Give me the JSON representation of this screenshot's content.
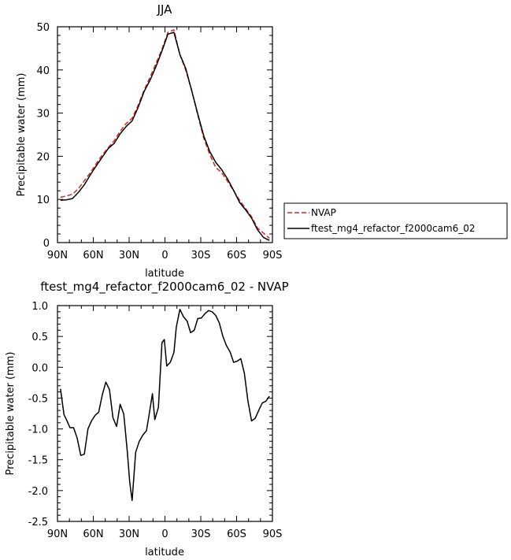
{
  "chart_data": [
    {
      "type": "line",
      "title": "JJA",
      "xlabel": "latitude",
      "ylabel": "Precipitable water (mm)",
      "xlim": [
        90,
        -90
      ],
      "ylim": [
        0,
        50
      ],
      "x_ticks": [
        {
          "value": 90,
          "label": "90N"
        },
        {
          "value": 60,
          "label": "60N"
        },
        {
          "value": 30,
          "label": "30N"
        },
        {
          "value": 0,
          "label": "0"
        },
        {
          "value": -30,
          "label": "30S"
        },
        {
          "value": -60,
          "label": "60S"
        },
        {
          "value": -90,
          "label": "90S"
        }
      ],
      "y_ticks": [
        {
          "value": 0,
          "label": "0"
        },
        {
          "value": 10,
          "label": "10"
        },
        {
          "value": 20,
          "label": "20"
        },
        {
          "value": 30,
          "label": "30"
        },
        {
          "value": 40,
          "label": "40"
        },
        {
          "value": 50,
          "label": "50"
        }
      ],
      "legend_position": "right",
      "series": [
        {
          "name": "NVAP",
          "color": "#dd2222",
          "dash": "dashed",
          "x": [
            87.5,
            82.5,
            77.5,
            72.5,
            67.5,
            62.5,
            57.5,
            52.5,
            47.5,
            42.5,
            37.5,
            32.5,
            27.5,
            22.5,
            17.5,
            12.5,
            7.5,
            2.5,
            -2.5,
            -7.5,
            -12.5,
            -17.5,
            -22.5,
            -27.5,
            -32.5,
            -37.5,
            -42.5,
            -47.5,
            -52.5,
            -57.5,
            -62.5,
            -67.5,
            -72.5,
            -77.5,
            -82.5,
            -87.5
          ],
          "y": [
            10.5,
            10.8,
            11.2,
            12.5,
            14.3,
            16.2,
            18.3,
            20.3,
            22.0,
            23.6,
            25.8,
            27.6,
            28.8,
            31.8,
            35.3,
            38.3,
            41.5,
            44.8,
            48.7,
            49.3,
            43.5,
            39.9,
            35.2,
            29.5,
            24.2,
            20.4,
            17.4,
            16.2,
            14.2,
            12.0,
            9.8,
            7.9,
            6.0,
            3.4,
            2.2,
            1.0
          ]
        },
        {
          "name": "ftest_mg4_refactor_f2000cam6_02",
          "color": "#000000",
          "dash": "solid",
          "x": [
            87.5,
            82.5,
            77.5,
            72.5,
            67.5,
            62.5,
            57.5,
            52.5,
            47.5,
            42.5,
            37.5,
            32.5,
            27.5,
            22.5,
            17.5,
            12.5,
            7.5,
            2.5,
            -2.5,
            -7.5,
            -12.5,
            -17.5,
            -22.5,
            -27.5,
            -32.5,
            -37.5,
            -42.5,
            -47.5,
            -52.5,
            -57.5,
            -62.5,
            -67.5,
            -72.5,
            -77.5,
            -82.5,
            -87.5
          ],
          "y": [
            9.8,
            9.9,
            10.2,
            11.6,
            13.4,
            15.7,
            17.8,
            19.8,
            21.8,
            23.0,
            25.2,
            26.9,
            28.2,
            31.3,
            35.0,
            37.6,
            40.8,
            44.4,
            48.3,
            48.7,
            43.6,
            40.3,
            35.1,
            29.8,
            24.7,
            21.1,
            18.6,
            16.9,
            14.7,
            12.1,
            9.3,
            7.6,
            5.7,
            3.0,
            1.2,
            0.5
          ]
        }
      ]
    },
    {
      "type": "line",
      "title": "ftest_mg4_refactor_f2000cam6_02 - NVAP",
      "xlabel": "latitude",
      "ylabel": "Precipitable water (mm)",
      "xlim": [
        90,
        -90
      ],
      "ylim": [
        -2.5,
        1.0
      ],
      "x_ticks": [
        {
          "value": 90,
          "label": "90N"
        },
        {
          "value": 60,
          "label": "60N"
        },
        {
          "value": 30,
          "label": "30N"
        },
        {
          "value": 0,
          "label": "0"
        },
        {
          "value": -30,
          "label": "30S"
        },
        {
          "value": -60,
          "label": "60S"
        },
        {
          "value": -90,
          "label": "90S"
        }
      ],
      "y_ticks": [
        {
          "value": -2.5,
          "label": "-2.5"
        },
        {
          "value": -2.0,
          "label": "-2.0"
        },
        {
          "value": -1.5,
          "label": "-1.5"
        },
        {
          "value": -1.0,
          "label": "-1.0"
        },
        {
          "value": -0.5,
          "label": "-0.5"
        },
        {
          "value": 0.0,
          "label": "0.0"
        },
        {
          "value": 0.5,
          "label": "0.5"
        },
        {
          "value": 1.0,
          "label": "1.0"
        }
      ],
      "series": [
        {
          "color": "#000000",
          "dash": "solid",
          "x": [
            87.5,
            84.5,
            82.5,
            79.5,
            76.5,
            73.5,
            70.5,
            67.5,
            64.5,
            61.5,
            58.5,
            55.5,
            52.5,
            49.5,
            46.5,
            43.5,
            40.5,
            37.5,
            34.5,
            31.5,
            29.5,
            27.5,
            24.5,
            21.5,
            18.5,
            15.5,
            13.5,
            10.5,
            8.5,
            5.5,
            2.5,
            0.5,
            -1.5,
            -4.5,
            -7.5,
            -9.5,
            -12.5,
            -15.5,
            -18.5,
            -21.5,
            -24.5,
            -27.5,
            -30.5,
            -33.5,
            -36.5,
            -39.5,
            -42.5,
            -45.5,
            -48.5,
            -51.5,
            -54.5,
            -57.5,
            -60.5,
            -63.5,
            -66.5,
            -69.5,
            -72.5,
            -75.5,
            -78.5,
            -81.5,
            -84.5,
            -87.5
          ],
          "y": [
            -0.35,
            -0.77,
            -0.85,
            -0.98,
            -0.98,
            -1.15,
            -1.43,
            -1.41,
            -1.0,
            -0.87,
            -0.78,
            -0.73,
            -0.45,
            -0.24,
            -0.36,
            -0.82,
            -0.96,
            -0.6,
            -0.76,
            -1.37,
            -1.87,
            -2.16,
            -1.38,
            -1.2,
            -1.1,
            -1.03,
            -0.8,
            -0.43,
            -0.85,
            -0.65,
            0.4,
            0.45,
            0.02,
            0.08,
            0.24,
            0.65,
            0.94,
            0.82,
            0.75,
            0.56,
            0.6,
            0.79,
            0.8,
            0.87,
            0.92,
            0.9,
            0.84,
            0.72,
            0.5,
            0.35,
            0.25,
            0.08,
            0.1,
            0.14,
            -0.1,
            -0.55,
            -0.87,
            -0.83,
            -0.7,
            -0.58,
            -0.55,
            -0.47
          ]
        }
      ]
    }
  ]
}
